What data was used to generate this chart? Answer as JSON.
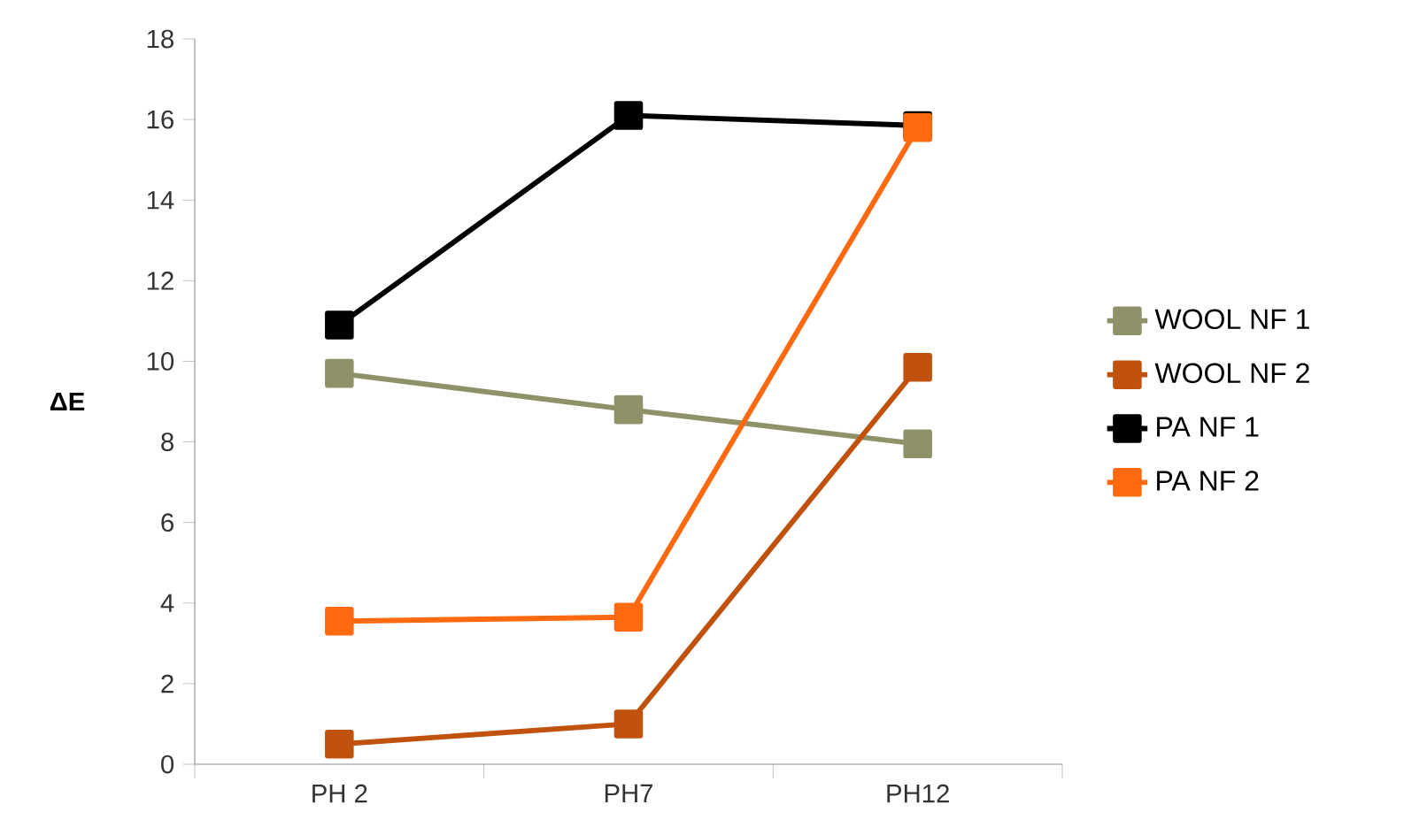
{
  "chart_data": {
    "type": "line",
    "ylabel": "ΔE",
    "categories": [
      "PH 2",
      "PH7",
      "PH12"
    ],
    "series": [
      {
        "name": "WOOL NF 1",
        "color": "#8f9168",
        "values": [
          9.7,
          8.8,
          7.95
        ]
      },
      {
        "name": "WOOL NF 2",
        "color": "#c0520e",
        "values": [
          0.5,
          1.0,
          9.85
        ]
      },
      {
        "name": "PA NF 1",
        "color": "#000000",
        "values": [
          10.9,
          16.1,
          15.85
        ]
      },
      {
        "name": "PA NF 2",
        "color": "#ff6a10",
        "values": [
          3.55,
          3.65,
          15.8
        ]
      }
    ],
    "ylim": [
      0,
      18
    ],
    "yticks": [
      0,
      2,
      4,
      6,
      8,
      10,
      12,
      14,
      16,
      18
    ],
    "legend": "right",
    "marker": "square"
  }
}
